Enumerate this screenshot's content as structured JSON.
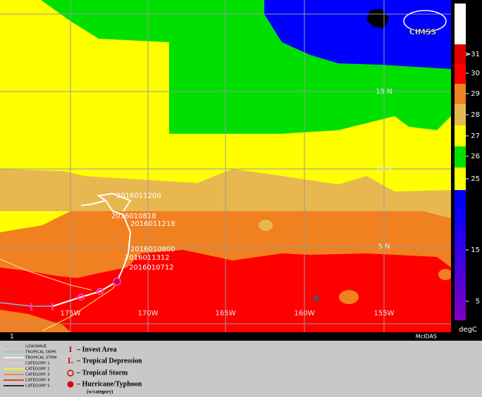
{
  "map": {
    "logo": "CIMSS",
    "lat_labels": [
      "15 N",
      "10 N",
      "5 N"
    ],
    "lon_labels": [
      "175W",
      "170W",
      "165W",
      "160W",
      "155W"
    ],
    "track_labels": [
      "2016011200",
      "2016010818",
      "2016011218",
      "2016010800",
      "2016011312",
      "2016010712"
    ],
    "colorbar": {
      "ticks": [
        ">31",
        "30",
        "29",
        "28",
        "27",
        "26",
        "25",
        "15",
        "5"
      ],
      "unit": "degC"
    },
    "footer": {
      "frame": "1",
      "software": "McIDAS"
    },
    "legend": {
      "lines": [
        "LOW/WAVE",
        "TROPICAL DEPR",
        "TROPICAL STRM",
        "CATEGORY 1",
        "CATEGORY 2",
        "CATEGORY 3",
        "CATEGORY 4",
        "CATEGORY 5"
      ],
      "symbols": [
        "– Invest Area",
        "– Tropical Depression",
        "– Tropical Storm",
        "– Hurricane/Typhoon"
      ],
      "note": "(w/category)"
    }
  }
}
